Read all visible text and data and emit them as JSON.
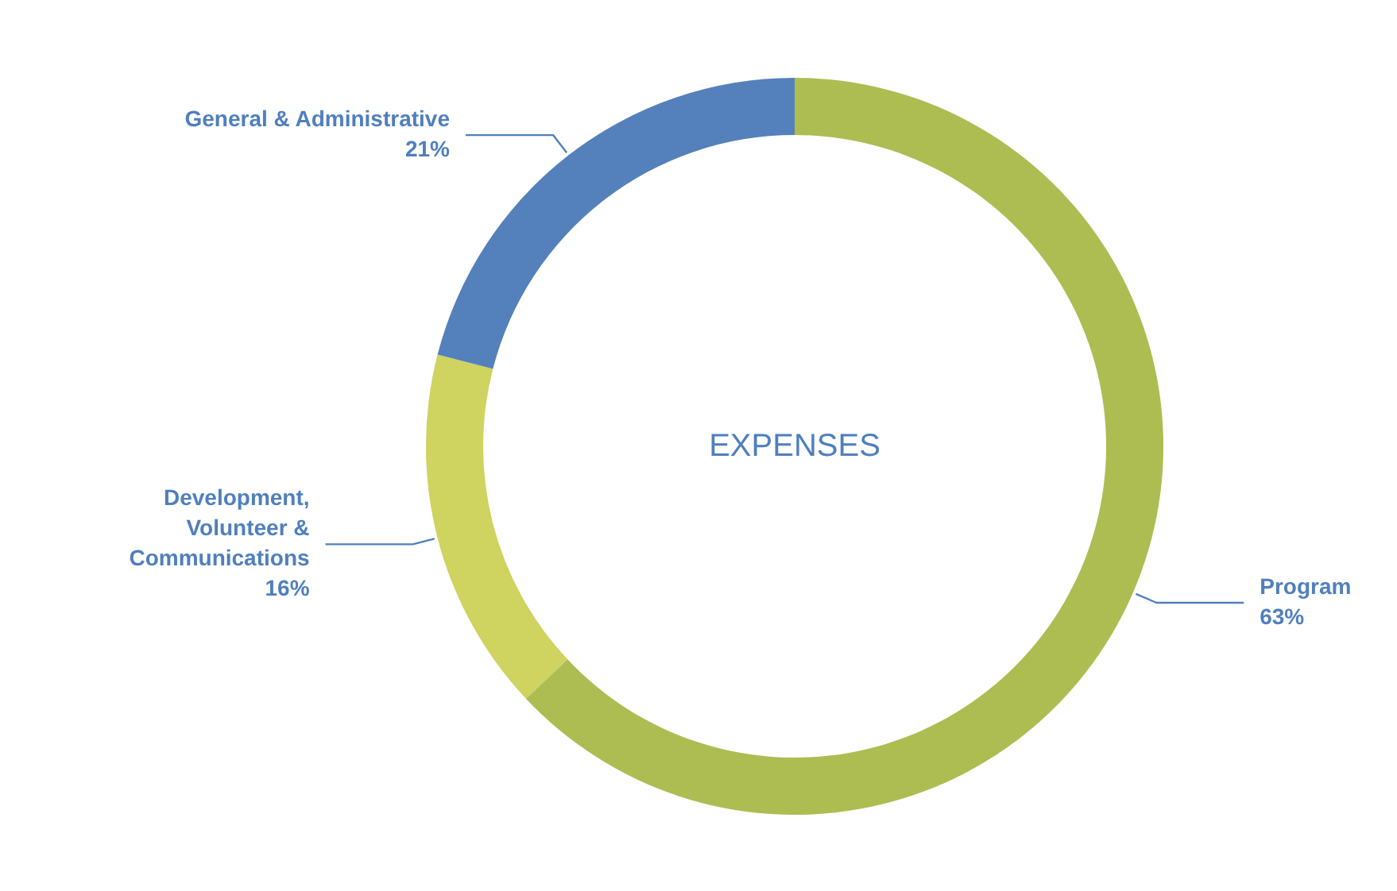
{
  "chart_data": {
    "type": "donut",
    "title": "EXPENSES",
    "categories": [
      "Program",
      "Development,\nVolunteer &\nCommunications",
      "General & Administrative"
    ],
    "values": [
      63,
      16,
      21
    ],
    "colors": [
      "#adbd52",
      "#cfd35f",
      "#5481bb"
    ],
    "value_labels": [
      "63%",
      "16%",
      "21%"
    ]
  }
}
